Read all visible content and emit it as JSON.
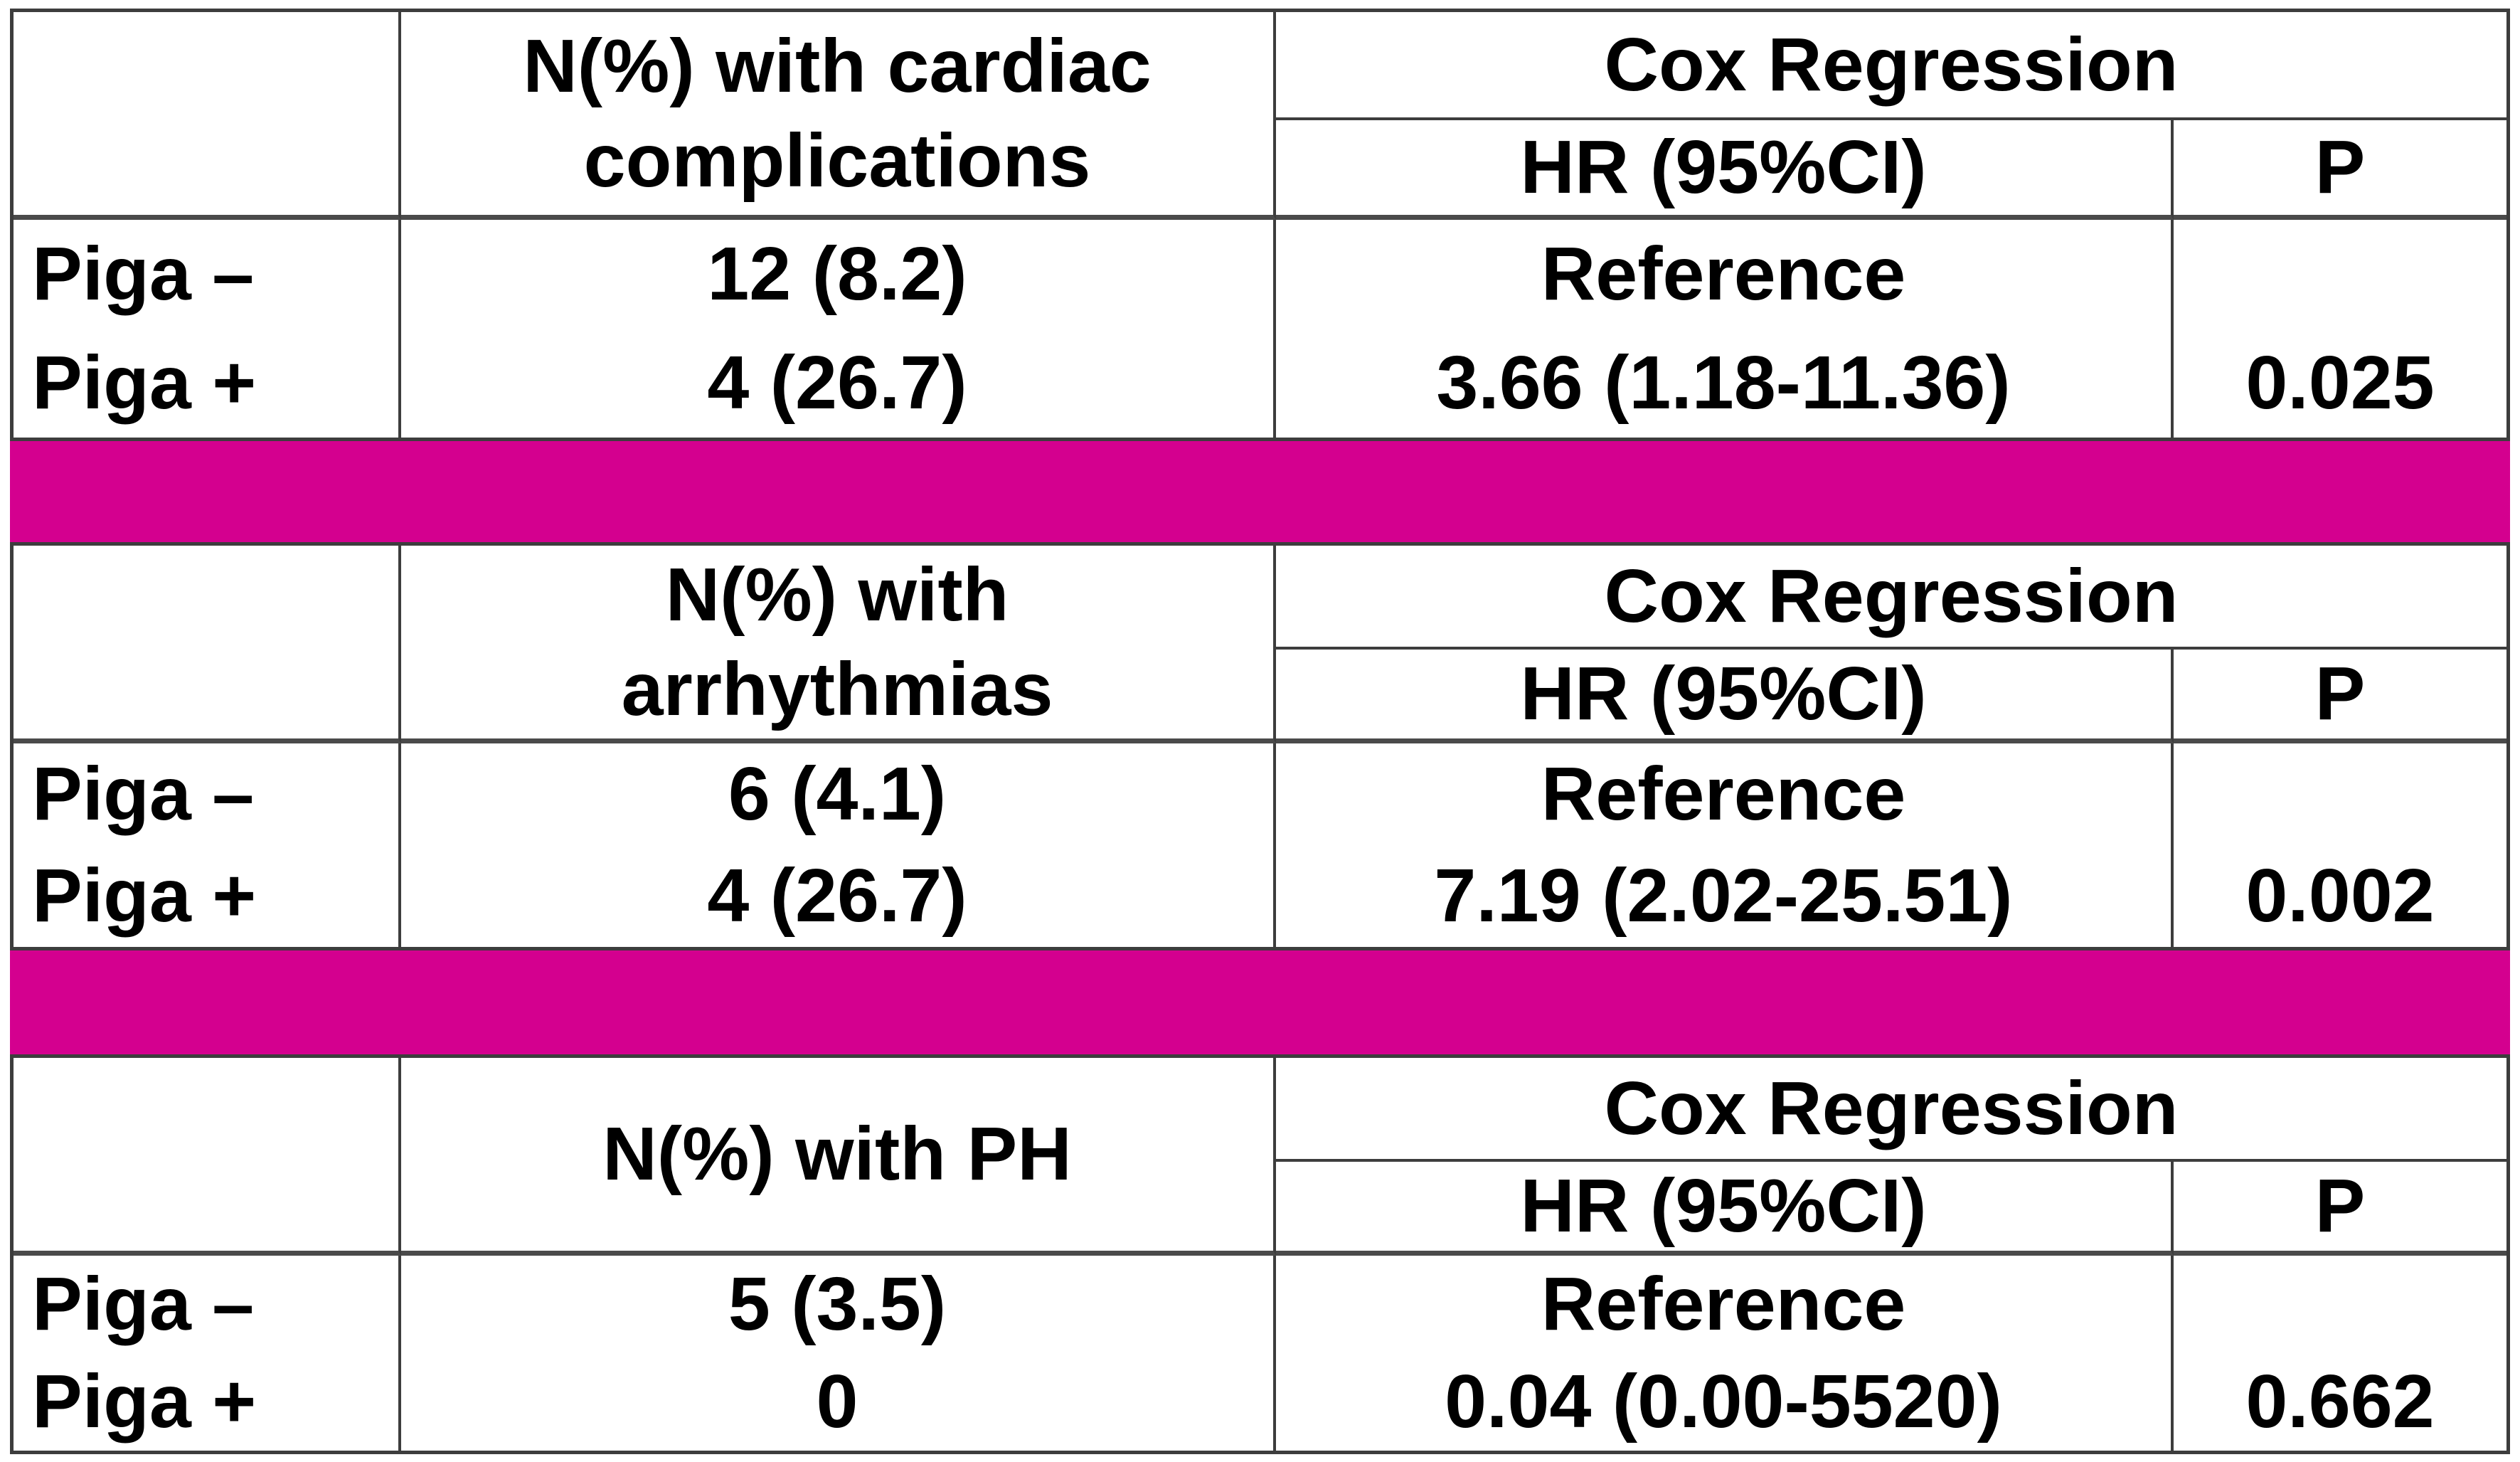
{
  "colors": {
    "separator_bar": "#d4008f",
    "border": "#3d3d3d",
    "text": "#000000",
    "background": "#ffffff"
  },
  "sections": [
    {
      "name": "cardiac-complications",
      "measure_line1": "N(%) with cardiac",
      "measure_line2": "complications",
      "cox_header": "Cox Regression",
      "hr_header": "HR (95%CI)",
      "p_header": "P",
      "rows": [
        {
          "group": "Piga –",
          "n_pct": "12 (8.2)",
          "hr": "Reference",
          "p": ""
        },
        {
          "group": "Piga +",
          "n_pct": "4 (26.7)",
          "hr": "3.66 (1.18-11.36)",
          "p": "0.025"
        }
      ]
    },
    {
      "name": "arrhythmias",
      "measure_line1": "N(%) with",
      "measure_line2": "arrhythmias",
      "cox_header": "Cox Regression",
      "hr_header": "HR (95%CI)",
      "p_header": "P",
      "rows": [
        {
          "group": "Piga –",
          "n_pct": "6 (4.1)",
          "hr": "Reference",
          "p": ""
        },
        {
          "group": "Piga +",
          "n_pct": "4 (26.7)",
          "hr": "7.19 (2.02-25.51)",
          "p": "0.002"
        }
      ]
    },
    {
      "name": "pulmonary-hypertension",
      "measure_line1": "N(%) with PH",
      "measure_line2": "",
      "cox_header": "Cox Regression",
      "hr_header": "HR (95%CI)",
      "p_header": "P",
      "rows": [
        {
          "group": "Piga –",
          "n_pct": "5 (3.5)",
          "hr": "Reference",
          "p": ""
        },
        {
          "group": "Piga +",
          "n_pct": "0",
          "hr": "0.04 (0.00-5520)",
          "p": "0.662"
        }
      ]
    }
  ]
}
